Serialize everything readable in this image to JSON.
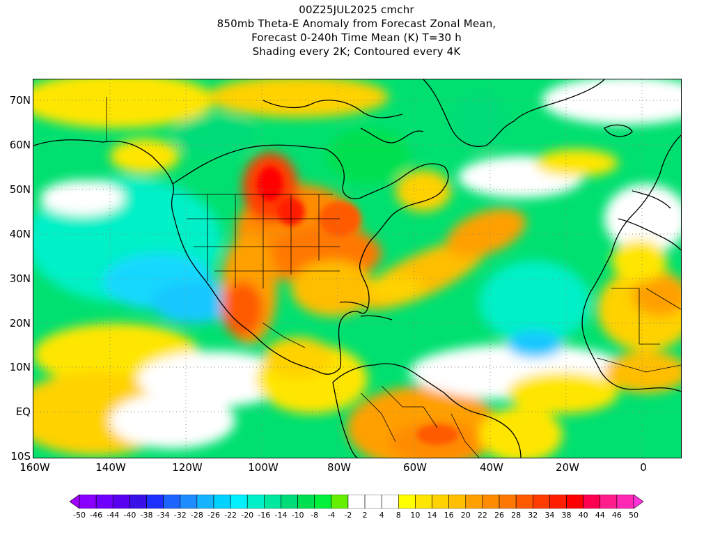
{
  "title": {
    "line1": "00Z25JUL2025 cmchr",
    "line2": "850mb Theta-E Anomaly from Forecast Zonal Mean,",
    "line3": "Forecast 0-240h Time Mean (K) T=30 h",
    "line4": "Shading every 2K; Contoured every 4K"
  },
  "map": {
    "lat_labels": [
      "70N",
      "60N",
      "50N",
      "40N",
      "30N",
      "20N",
      "10N",
      "EQ",
      "10S"
    ],
    "lon_labels": [
      "160W",
      "140W",
      "120W",
      "100W",
      "80W",
      "60W",
      "40W",
      "20W",
      "0"
    ],
    "lat_range": [
      -10,
      75
    ],
    "lon_range": [
      -160,
      10
    ]
  },
  "colorbar": {
    "labels": [
      "-50",
      "-46",
      "-44",
      "-40",
      "-38",
      "-34",
      "-32",
      "-28",
      "-26",
      "-22",
      "-20",
      "-16",
      "-14",
      "-10",
      "-8",
      "-4",
      "-2",
      "2",
      "4",
      "8",
      "10",
      "14",
      "16",
      "20",
      "22",
      "26",
      "28",
      "32",
      "34",
      "38",
      "40",
      "44",
      "46",
      "50"
    ],
    "colors": [
      "#a000ff",
      "#8a00ff",
      "#7000ff",
      "#5a00f0",
      "#3a10e8",
      "#1e30ff",
      "#1e64ff",
      "#1e8cff",
      "#14b4ff",
      "#00d2ff",
      "#00f0ff",
      "#00f0c8",
      "#00e8a0",
      "#00dc78",
      "#00e050",
      "#00f03c",
      "#64f000",
      "#ffffff",
      "#ffffff",
      "#ffffff",
      "#ffff00",
      "#ffe600",
      "#ffd200",
      "#ffbe00",
      "#ffa000",
      "#ff8c00",
      "#ff7800",
      "#ff5a00",
      "#ff3c00",
      "#ff1e00",
      "#ff0000",
      "#ff0050",
      "#ff1e8c",
      "#ff28b4",
      "#ff32dc"
    ]
  }
}
